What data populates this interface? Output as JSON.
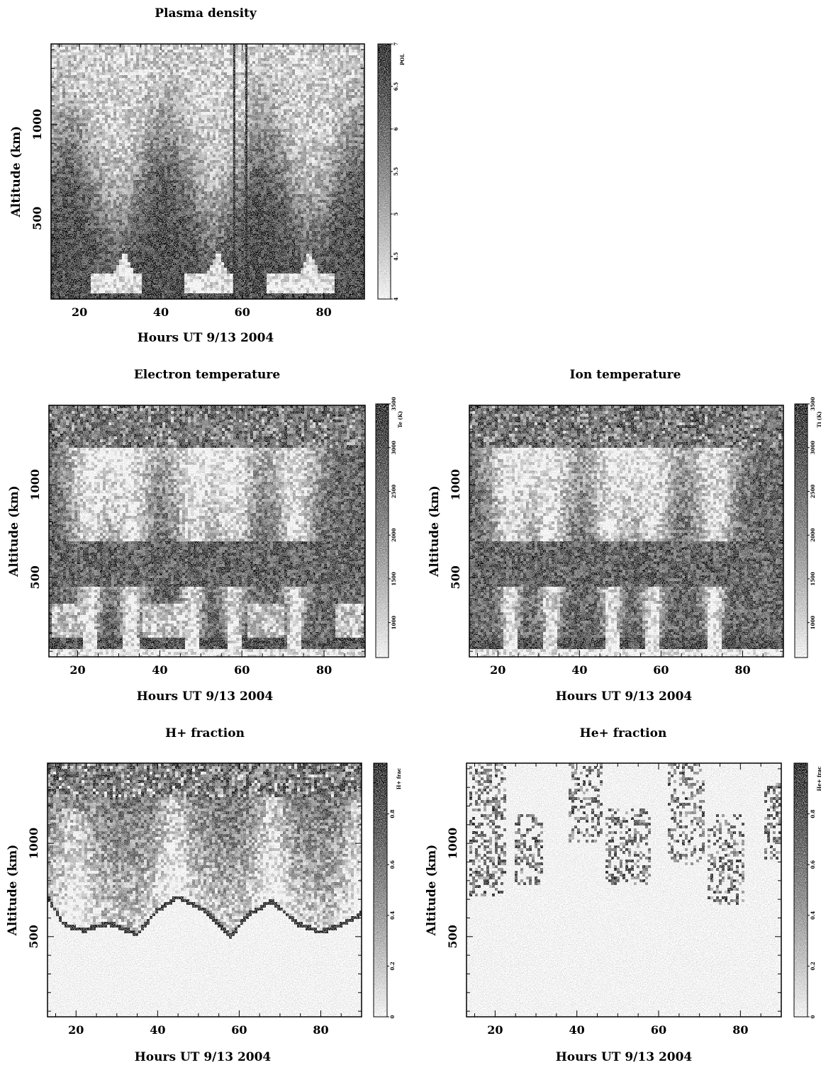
{
  "chart_data": [
    {
      "id": "plasma-density",
      "type": "heatmap",
      "title": "Plasma density",
      "xlabel": "Hours UT  9/13 2004",
      "ylabel": "Altitude (km)",
      "xlim": [
        13,
        90
      ],
      "ylim": [
        70,
        1430
      ],
      "xticks": [
        "20",
        "40",
        "60",
        "80"
      ],
      "xtick_values": [
        20,
        40,
        60,
        80
      ],
      "yticks": [
        "500",
        "1000"
      ],
      "ytick_values": [
        500,
        1000
      ],
      "colorbar": {
        "label": "POL",
        "range": [
          4,
          7
        ],
        "ticks": [
          "4",
          "4.5",
          "5",
          "5.5",
          "6",
          "6.5",
          "7"
        ],
        "tick_values": [
          4,
          4.5,
          5,
          5.5,
          6,
          6.5,
          7
        ]
      },
      "pattern": "density",
      "features": {
        "density_bright_band_hours": [
          [
            23,
            35
          ],
          [
            46,
            58
          ],
          [
            66,
            83
          ]
        ],
        "vertical_dark_lines_hours": [
          58,
          61
        ]
      }
    },
    {
      "id": "electron-temperature",
      "type": "heatmap",
      "title": "Electron temperature",
      "xlabel": "Hours UT  9/13 2004",
      "ylabel": "Altitude (km)",
      "xlim": [
        13,
        90
      ],
      "ylim": [
        70,
        1430
      ],
      "xticks": [
        "20",
        "40",
        "60",
        "80"
      ],
      "xtick_values": [
        20,
        40,
        60,
        80
      ],
      "yticks": [
        "500",
        "1000"
      ],
      "ytick_values": [
        500,
        1000
      ],
      "colorbar": {
        "label": "Te (K)",
        "range": [
          600,
          3500
        ],
        "ticks": [
          "1000",
          "1500",
          "2000",
          "2500",
          "3000",
          "3500"
        ],
        "tick_values": [
          1000,
          1500,
          2000,
          2500,
          3000,
          3500
        ]
      },
      "pattern": "temperature",
      "features": {
        "low_altitude_warm_blocks_hours": [
          [
            14,
            23
          ],
          [
            36,
            47
          ],
          [
            61,
            70
          ],
          [
            83,
            90
          ]
        ],
        "tongue_peak_hours": [
          23,
          33,
          48,
          58,
          73
        ]
      }
    },
    {
      "id": "ion-temperature",
      "type": "heatmap",
      "title": "Ion temperature",
      "xlabel": "Hours UT  9/13 2004",
      "ylabel": "Altitude (km)",
      "xlim": [
        13,
        90
      ],
      "ylim": [
        70,
        1430
      ],
      "xticks": [
        "20",
        "40",
        "60",
        "80"
      ],
      "xtick_values": [
        20,
        40,
        60,
        80
      ],
      "yticks": [
        "500",
        "1000"
      ],
      "ytick_values": [
        500,
        1000
      ],
      "colorbar": {
        "label": "Ti (K)",
        "range": [
          600,
          3500
        ],
        "ticks": [
          "1000",
          "1500",
          "2000",
          "2500",
          "3000",
          "3500"
        ],
        "tick_values": [
          1000,
          1500,
          2000,
          2500,
          3000,
          3500
        ]
      },
      "pattern": "temperature",
      "features": {
        "low_altitude_warm_blocks_hours": [],
        "tongue_peak_hours": [
          23,
          33,
          48,
          58,
          73
        ]
      }
    },
    {
      "id": "h-plus-fraction",
      "type": "heatmap",
      "title": "H+ fraction",
      "xlabel": "Hours UT  9/13 2004",
      "ylabel": "Altitude (km)",
      "xlim": [
        13,
        90
      ],
      "ylim": [
        70,
        1430
      ],
      "xticks": [
        "20",
        "40",
        "60",
        "80"
      ],
      "xtick_values": [
        20,
        40,
        60,
        80
      ],
      "yticks": [
        "500",
        "1000"
      ],
      "ytick_values": [
        500,
        1000
      ],
      "colorbar": {
        "label": "H+ frac",
        "range": [
          0,
          1
        ],
        "ticks": [
          "0",
          "0.2",
          "0.4",
          "0.6",
          "0.8"
        ],
        "tick_values": [
          0,
          0.2,
          0.4,
          0.6,
          0.8
        ]
      },
      "pattern": "hplus",
      "features": {
        "lower_boundary_km": [
          [
            13,
            700
          ],
          [
            17,
            550
          ],
          [
            22,
            520
          ],
          [
            28,
            560
          ],
          [
            35,
            500
          ],
          [
            40,
            630
          ],
          [
            45,
            700
          ],
          [
            52,
            620
          ],
          [
            58,
            490
          ],
          [
            62,
            600
          ],
          [
            68,
            680
          ],
          [
            74,
            560
          ],
          [
            80,
            510
          ],
          [
            86,
            560
          ],
          [
            90,
            610
          ]
        ]
      }
    },
    {
      "id": "he-plus-fraction",
      "type": "heatmap",
      "title": "He+ fraction",
      "xlabel": "Hours UT  9/13 2004",
      "ylabel": "Altitude (km)",
      "xlim": [
        13,
        90
      ],
      "ylim": [
        70,
        1430
      ],
      "xticks": [
        "20",
        "40",
        "60",
        "80"
      ],
      "xtick_values": [
        20,
        40,
        60,
        80
      ],
      "yticks": [
        "500",
        "1000"
      ],
      "ytick_values": [
        500,
        1000
      ],
      "colorbar": {
        "label": "He+ frac",
        "range": [
          0,
          1
        ],
        "ticks": [
          "0",
          "0.2",
          "0.4",
          "0.6",
          "0.8"
        ],
        "tick_values": [
          0,
          0.2,
          0.4,
          0.6,
          0.8
        ]
      },
      "pattern": "heplus",
      "features": {
        "speckle_clusters": [
          {
            "x": [
              14,
              23
            ],
            "y": [
              720,
              1430
            ]
          },
          {
            "x": [
              25,
              32
            ],
            "y": [
              770,
              1150
            ]
          },
          {
            "x": [
              38,
              46
            ],
            "y": [
              1000,
              1430
            ]
          },
          {
            "x": [
              47,
              58
            ],
            "y": [
              780,
              1180
            ]
          },
          {
            "x": [
              62,
              71
            ],
            "y": [
              880,
              1430
            ]
          },
          {
            "x": [
              72,
              81
            ],
            "y": [
              670,
              1150
            ]
          },
          {
            "x": [
              86,
              90
            ],
            "y": [
              920,
              1330
            ]
          }
        ]
      }
    }
  ]
}
